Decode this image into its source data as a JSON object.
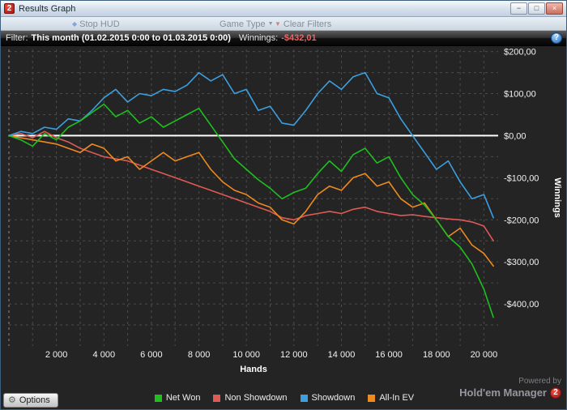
{
  "window": {
    "title": "Results Graph",
    "logo": "2",
    "controls": {
      "minimize": "−",
      "maximize": "□",
      "close": "×"
    }
  },
  "toolbar": {
    "items": [
      {
        "label": "Stop HUD"
      },
      {
        "label": "Game Type"
      },
      {
        "label": "Clear Filters"
      }
    ]
  },
  "filter": {
    "label": "Filter:",
    "value": "This month (01.02.2015 0:00 to 01.03.2015 0:00)",
    "winnings_label": "Winnings:",
    "winnings_value": "-$432,01",
    "winnings_color": "#ff5c5c",
    "help_icon": "?"
  },
  "footer": {
    "options_label": "Options",
    "powered_by": "Powered by",
    "brand": "Hold'em Manager",
    "brand_logo": "2"
  },
  "chart_data": {
    "type": "line",
    "xlabel": "Hands",
    "ylabel": "Winnings",
    "xlim": [
      0,
      20600
    ],
    "ylim": [
      -500,
      205
    ],
    "grid": "dashed",
    "zero_line": true,
    "x_ticks": [
      2000,
      4000,
      6000,
      8000,
      10000,
      12000,
      14000,
      16000,
      18000,
      20000
    ],
    "x_tick_labels": [
      "2 000",
      "4 000",
      "6 000",
      "8 000",
      "10 000",
      "12 000",
      "14 000",
      "16 000",
      "18 000",
      "20 000"
    ],
    "y_ticks": [
      200,
      100,
      0,
      -100,
      -200,
      -300,
      -400
    ],
    "y_tick_labels": [
      "$200,00",
      "$100,00",
      "$0,00",
      "-$100,00",
      "-$200,00",
      "-$300,00",
      "-$400,00"
    ],
    "x": [
      0,
      500,
      1000,
      1500,
      2000,
      2500,
      3000,
      3500,
      4000,
      4500,
      5000,
      5500,
      6000,
      6500,
      7000,
      7500,
      8000,
      8500,
      9000,
      9500,
      10000,
      10500,
      11000,
      11500,
      12000,
      12500,
      13000,
      13500,
      14000,
      14500,
      15000,
      15500,
      16000,
      16500,
      17000,
      17500,
      18000,
      18500,
      19000,
      19500,
      20000,
      20400
    ],
    "series": [
      {
        "name": "Non Showdown",
        "color": "#e05a55",
        "y": [
          0,
          5,
          -5,
          10,
          -5,
          -15,
          -30,
          -40,
          -50,
          -55,
          -60,
          -70,
          -80,
          -90,
          -100,
          -110,
          -120,
          -130,
          -140,
          -150,
          -160,
          -170,
          -180,
          -195,
          -200,
          -190,
          -185,
          -180,
          -185,
          -175,
          -170,
          -180,
          -185,
          -190,
          -188,
          -192,
          -195,
          -198,
          -200,
          -205,
          -215,
          -250
        ]
      },
      {
        "name": "Showdown",
        "color": "#3b9fe0",
        "y": [
          0,
          10,
          5,
          20,
          15,
          40,
          35,
          60,
          90,
          110,
          80,
          100,
          95,
          110,
          105,
          120,
          150,
          130,
          145,
          100,
          110,
          60,
          70,
          30,
          25,
          60,
          100,
          130,
          110,
          140,
          150,
          100,
          90,
          40,
          0,
          -40,
          -80,
          -60,
          -110,
          -150,
          -140,
          -195
        ]
      },
      {
        "name": "All-In EV",
        "color": "#ee8a1e",
        "y": [
          0,
          -5,
          -10,
          -15,
          -20,
          -30,
          -40,
          -20,
          -30,
          -60,
          -50,
          -80,
          -60,
          -40,
          -60,
          -50,
          -40,
          -80,
          -110,
          -130,
          -140,
          -160,
          -170,
          -200,
          -210,
          -180,
          -140,
          -120,
          -130,
          -100,
          -90,
          -120,
          -110,
          -150,
          -170,
          -160,
          -200,
          -240,
          -220,
          -260,
          -280,
          -310
        ]
      },
      {
        "name": "Net Won",
        "color": "#1fbf1f",
        "y": [
          0,
          -10,
          -25,
          5,
          -10,
          20,
          35,
          55,
          75,
          45,
          60,
          30,
          45,
          20,
          35,
          50,
          65,
          25,
          -15,
          -55,
          -80,
          -105,
          -125,
          -150,
          -135,
          -125,
          -90,
          -60,
          -85,
          -45,
          -30,
          -65,
          -50,
          -100,
          -140,
          -165,
          -200,
          -240,
          -265,
          -305,
          -365,
          -432
        ]
      }
    ],
    "legend_order": [
      "Net Won",
      "Non Showdown",
      "Showdown",
      "All-In EV"
    ],
    "legend_position": "bottom-center"
  }
}
